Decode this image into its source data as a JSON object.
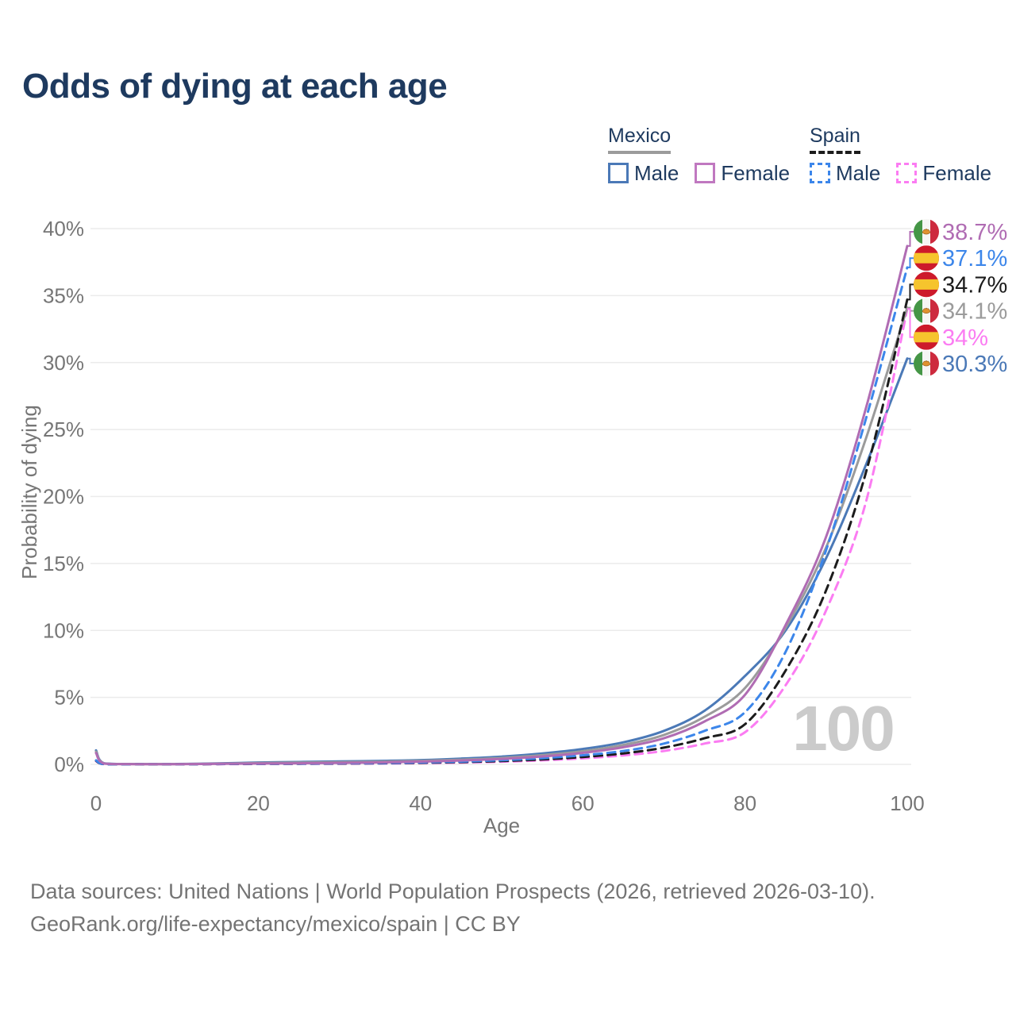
{
  "title": "Odds of dying at each age",
  "legend": {
    "groups": [
      {
        "country": "Mexico",
        "line": {
          "color": "#9b9b9b",
          "dash": false
        },
        "items": [
          {
            "label": "Male",
            "color": "#4b79b7",
            "dash": false
          },
          {
            "label": "Female",
            "color": "#c078c0",
            "dash": false
          }
        ]
      },
      {
        "country": "Spain",
        "line": {
          "color": "#1c1c1c",
          "dash": true
        },
        "items": [
          {
            "label": "Male",
            "color": "#3c86ea",
            "dash": true
          },
          {
            "label": "Female",
            "color": "#fb7cf2",
            "dash": true
          }
        ]
      }
    ]
  },
  "chart_data": {
    "type": "line",
    "title": "Odds of dying at each age",
    "xlabel": "Age",
    "ylabel": "Probability of dying",
    "xlim": [
      0,
      100
    ],
    "ylim": [
      0,
      40
    ],
    "x_ticks": [
      0,
      20,
      40,
      60,
      80,
      100
    ],
    "y_ticks": [
      0,
      5,
      10,
      15,
      20,
      25,
      30,
      35,
      40
    ],
    "y_tick_suffix": "%",
    "grid": "horizontal",
    "legend_position": "top-right",
    "watermark": "100",
    "x": [
      0,
      1,
      5,
      10,
      15,
      20,
      25,
      30,
      35,
      40,
      45,
      50,
      55,
      60,
      65,
      70,
      75,
      80,
      85,
      90,
      95,
      100
    ],
    "series": [
      {
        "id": "mexico-female",
        "name": "Mexico Female",
        "country": "mexico",
        "sex": "female",
        "color": "#b06cb3",
        "dash": false,
        "end_label": "38.7%",
        "end_value": 38.7,
        "values": [
          0.85,
          0.06,
          0.02,
          0.02,
          0.04,
          0.065,
          0.085,
          0.11,
          0.15,
          0.21,
          0.29,
          0.41,
          0.59,
          0.86,
          1.28,
          1.95,
          3.2,
          5.2,
          10.4,
          17.0,
          26.8,
          38.7
        ]
      },
      {
        "id": "spain-male",
        "name": "Spain Male",
        "country": "spain",
        "sex": "male",
        "color": "#3c86ea",
        "dash": true,
        "end_label": "37.1%",
        "end_value": 37.1,
        "values": [
          0.3,
          0.02,
          0.012,
          0.012,
          0.028,
          0.05,
          0.06,
          0.08,
          0.1,
          0.15,
          0.21,
          0.31,
          0.46,
          0.68,
          1.0,
          1.55,
          2.5,
          3.9,
          8.4,
          16.0,
          26.0,
          37.1
        ]
      },
      {
        "id": "spain-total",
        "name": "Spain",
        "country": "spain",
        "sex": "all",
        "color": "#1c1c1c",
        "dash": true,
        "end_label": "34.7%",
        "end_value": 34.7,
        "values": [
          0.27,
          0.018,
          0.01,
          0.01,
          0.022,
          0.04,
          0.05,
          0.065,
          0.085,
          0.12,
          0.17,
          0.25,
          0.37,
          0.55,
          0.82,
          1.25,
          1.95,
          3.0,
          7.0,
          13.0,
          22.0,
          34.7
        ]
      },
      {
        "id": "mexico-total",
        "name": "Mexico",
        "country": "mexico",
        "sex": "all",
        "color": "#9b9b9b",
        "dash": false,
        "end_label": "34.1%",
        "end_value": 34.1,
        "values": [
          0.95,
          0.07,
          0.025,
          0.025,
          0.055,
          0.1,
          0.13,
          0.16,
          0.2,
          0.26,
          0.35,
          0.48,
          0.69,
          0.98,
          1.45,
          2.2,
          3.55,
          5.7,
          10.2,
          16.2,
          24.5,
          34.1
        ]
      },
      {
        "id": "spain-female",
        "name": "Spain Female",
        "country": "spain",
        "sex": "female",
        "color": "#fb7cf2",
        "dash": true,
        "end_label": "34%",
        "end_value": 34.0,
        "values": [
          0.24,
          0.015,
          0.009,
          0.009,
          0.018,
          0.03,
          0.04,
          0.05,
          0.065,
          0.095,
          0.135,
          0.2,
          0.3,
          0.45,
          0.67,
          1.0,
          1.55,
          2.4,
          5.9,
          11.5,
          19.8,
          34.0
        ]
      },
      {
        "id": "mexico-male",
        "name": "Mexico Male",
        "country": "mexico",
        "sex": "male",
        "color": "#4b79b7",
        "dash": false,
        "end_label": "30.3%",
        "end_value": 30.3,
        "values": [
          1.05,
          0.08,
          0.03,
          0.03,
          0.07,
          0.14,
          0.18,
          0.22,
          0.26,
          0.32,
          0.43,
          0.58,
          0.82,
          1.15,
          1.65,
          2.5,
          4.0,
          6.6,
          10.0,
          15.4,
          22.5,
          30.3
        ]
      }
    ]
  },
  "footer": {
    "line1": "Data sources: United Nations | World Population Prospects (2026, retrieved 2026-03-10).",
    "line2": "GeoRank.org/life-expectancy/mexico/spain | CC BY"
  }
}
